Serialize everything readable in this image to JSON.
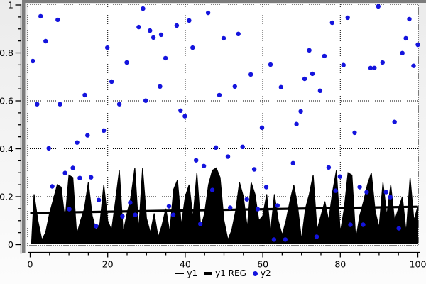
{
  "chart_data": {
    "type": "mixed",
    "title": "",
    "xlabel": "",
    "ylabel": "",
    "xlim": [
      0,
      100
    ],
    "ylim": [
      0,
      1
    ],
    "grid": "dotted-major",
    "legend_position": "bottom-center",
    "x_tick_values": [
      0,
      20,
      40,
      60,
      80,
      100
    ],
    "x_tick_labels": [
      "0",
      "20",
      "40",
      "60",
      "80",
      "100"
    ],
    "x_minor_step": 5,
    "y_tick_values": [
      0,
      0.2,
      0.4,
      0.6,
      0.8,
      1
    ],
    "y_tick_labels": [
      "0",
      "0.2",
      "0.4",
      "0.6",
      "0.8",
      "1"
    ],
    "y_minor_step": 0.05,
    "series": [
      {
        "name": "y1",
        "type": "area",
        "color": "#000000",
        "x_start": 1,
        "x_step": 1,
        "values": [
          0.21,
          0.1,
          0.02,
          0.05,
          0.13,
          0.19,
          0.25,
          0.24,
          0.1,
          0.29,
          0.28,
          0.04,
          0.1,
          0.15,
          0.26,
          0.12,
          0.06,
          0.09,
          0.25,
          0.1,
          0.06,
          0.18,
          0.31,
          0.05,
          0.13,
          0.2,
          0.32,
          0.06,
          0.32,
          0.11,
          0.05,
          0.13,
          0.03,
          0.08,
          0.15,
          0.05,
          0.23,
          0.27,
          0.08,
          0.2,
          0.25,
          0.11,
          0.3,
          0.07,
          0.13,
          0.25,
          0.31,
          0.32,
          0.28,
          0.1,
          0.02,
          0.06,
          0.14,
          0.26,
          0.2,
          0.07,
          0.26,
          0.21,
          0.1,
          0.12,
          0.21,
          0.05,
          0.21,
          0.1,
          0.04,
          0.1,
          0.18,
          0.25,
          0.16,
          0.02,
          0.15,
          0.21,
          0.29,
          0.06,
          0.12,
          0.18,
          0.1,
          0.22,
          0.31,
          0.05,
          0.15,
          0.3,
          0.29,
          0.02,
          0.12,
          0.18,
          0.25,
          0.3,
          0.14,
          0.07,
          0.26,
          0.12,
          0.25,
          0.1,
          0.15,
          0.2,
          0.05,
          0.28,
          0.1,
          0.16
        ]
      },
      {
        "name": "y1 REG",
        "type": "regression-line",
        "color": "#000000",
        "stroke_width": 3.2,
        "points": [
          [
            0,
            0.132
          ],
          [
            100,
            0.158
          ]
        ]
      },
      {
        "name": "y2",
        "type": "scatter",
        "color": "#1414dd",
        "marker": "circle",
        "marker_radius": 3.2,
        "points": [
          [
            2.7,
            0.953
          ],
          [
            7.1,
            0.938
          ],
          [
            4.0,
            0.849
          ],
          [
            0.7,
            0.766
          ],
          [
            19.9,
            0.822
          ],
          [
            29.1,
            0.985
          ],
          [
            28.0,
            0.908
          ],
          [
            30.9,
            0.893
          ],
          [
            31.8,
            0.864
          ],
          [
            21.0,
            0.68
          ],
          [
            24.9,
            0.76
          ],
          [
            33.8,
            0.876
          ],
          [
            33.5,
            0.66
          ],
          [
            45.9,
            0.967
          ],
          [
            41.0,
            0.935
          ],
          [
            37.8,
            0.914
          ],
          [
            49.9,
            0.861
          ],
          [
            53.7,
            0.879
          ],
          [
            41.9,
            0.822
          ],
          [
            34.9,
            0.778
          ],
          [
            62.0,
            0.751
          ],
          [
            56.9,
            0.71
          ],
          [
            52.8,
            0.66
          ],
          [
            89.8,
            0.994
          ],
          [
            81.9,
            0.947
          ],
          [
            97.8,
            0.941
          ],
          [
            77.9,
            0.926
          ],
          [
            96.9,
            0.861
          ],
          [
            100.0,
            0.834
          ],
          [
            72.0,
            0.811
          ],
          [
            75.9,
            0.787
          ],
          [
            96.0,
            0.799
          ],
          [
            80.8,
            0.749
          ],
          [
            87.8,
            0.737
          ],
          [
            88.8,
            0.737
          ],
          [
            90.9,
            0.76
          ],
          [
            98.9,
            0.746
          ],
          [
            72.8,
            0.713
          ],
          [
            70.8,
            0.692
          ],
          [
            14.1,
            0.624
          ],
          [
            1.8,
            0.586
          ],
          [
            7.7,
            0.586
          ],
          [
            23.0,
            0.586
          ],
          [
            29.8,
            0.601
          ],
          [
            19.0,
            0.476
          ],
          [
            14.8,
            0.456
          ],
          [
            12.1,
            0.426
          ],
          [
            4.8,
            0.402
          ],
          [
            11.0,
            0.32
          ],
          [
            64.7,
            0.657
          ],
          [
            48.8,
            0.624
          ],
          [
            38.8,
            0.559
          ],
          [
            39.9,
            0.536
          ],
          [
            59.8,
            0.488
          ],
          [
            47.9,
            0.405
          ],
          [
            54.8,
            0.408
          ],
          [
            51.0,
            0.367
          ],
          [
            42.8,
            0.352
          ],
          [
            44.8,
            0.328
          ],
          [
            57.8,
            0.314
          ],
          [
            74.8,
            0.642
          ],
          [
            69.8,
            0.556
          ],
          [
            68.7,
            0.503
          ],
          [
            83.7,
            0.467
          ],
          [
            94.0,
            0.512
          ],
          [
            67.8,
            0.34
          ],
          [
            77.0,
            0.322
          ],
          [
            5.7,
            0.243
          ],
          [
            9.0,
            0.299
          ],
          [
            12.8,
            0.278
          ],
          [
            15.7,
            0.281
          ],
          [
            10.1,
            0.148
          ],
          [
            17.7,
            0.186
          ],
          [
            23.8,
            0.118
          ],
          [
            17.0,
            0.077
          ],
          [
            25.8,
            0.175
          ],
          [
            27.1,
            0.124
          ],
          [
            60.9,
            0.24
          ],
          [
            47.0,
            0.228
          ],
          [
            35.8,
            0.16
          ],
          [
            51.6,
            0.154
          ],
          [
            55.9,
            0.189
          ],
          [
            36.9,
            0.124
          ],
          [
            58.7,
            0.148
          ],
          [
            43.9,
            0.086
          ],
          [
            63.8,
            0.163
          ],
          [
            62.9,
            0.021
          ],
          [
            65.8,
            0.021
          ],
          [
            79.9,
            0.284
          ],
          [
            78.8,
            0.225
          ],
          [
            85.0,
            0.24
          ],
          [
            86.8,
            0.219
          ],
          [
            91.8,
            0.219
          ],
          [
            92.9,
            0.198
          ],
          [
            82.6,
            0.083
          ],
          [
            85.9,
            0.083
          ],
          [
            95.1,
            0.068
          ],
          [
            73.9,
            0.033
          ]
        ]
      }
    ]
  },
  "legend": {
    "items": [
      {
        "label": "y1",
        "swatch": "thin-line",
        "color": "#000000"
      },
      {
        "label": "y1 REG",
        "swatch": "thick-line",
        "color": "#000000"
      },
      {
        "label": "y2",
        "swatch": "dot",
        "color": "#1414dd"
      }
    ]
  },
  "style": {
    "background_outer": "#f0f0f0",
    "background_plot": "#ffffff",
    "grid_color": "#000000",
    "axis_color": "#000000",
    "frame_bar_color": "#7c7c7c",
    "text_color": "#000000",
    "scatter_color": "#1414dd"
  }
}
